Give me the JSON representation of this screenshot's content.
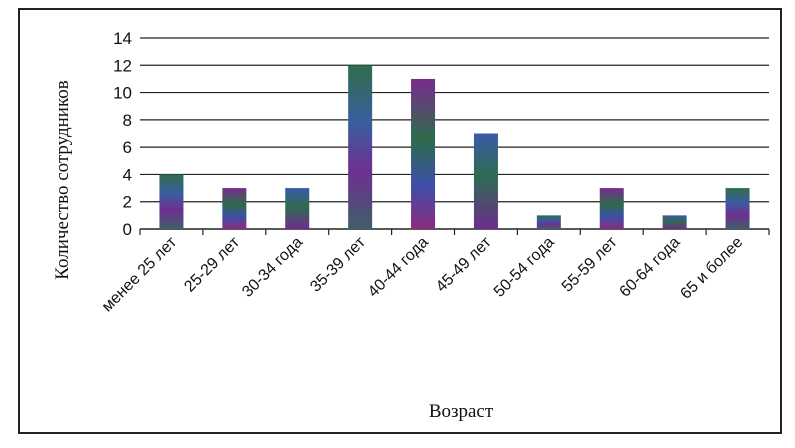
{
  "chart_data": {
    "type": "bar",
    "categories": [
      "менее 25 лет",
      "25-29 лет",
      "30-34 года",
      "35-39 лет",
      "40-44 года",
      "45-49 лет",
      "50-54 года",
      "55-59 лет",
      "60-64 года",
      "65 и более"
    ],
    "values": [
      4,
      3,
      3,
      12,
      11,
      7,
      1,
      3,
      1,
      3
    ],
    "title": "",
    "xlabel": "Возраст",
    "ylabel": "Количество сотрудников",
    "ylim": [
      0,
      14
    ],
    "yticks": [
      "0",
      "2",
      "4",
      "6",
      "8",
      "10",
      "12",
      "14"
    ],
    "grid": true,
    "legend": "none",
    "colors": {
      "bar_top": "#2e6b4a",
      "bar_mid": "#3d4fa8",
      "bar_mid2": "#7a2c8e",
      "bar_bottom": "#5a2a78",
      "grid": "#222222",
      "text": "#111111"
    }
  }
}
